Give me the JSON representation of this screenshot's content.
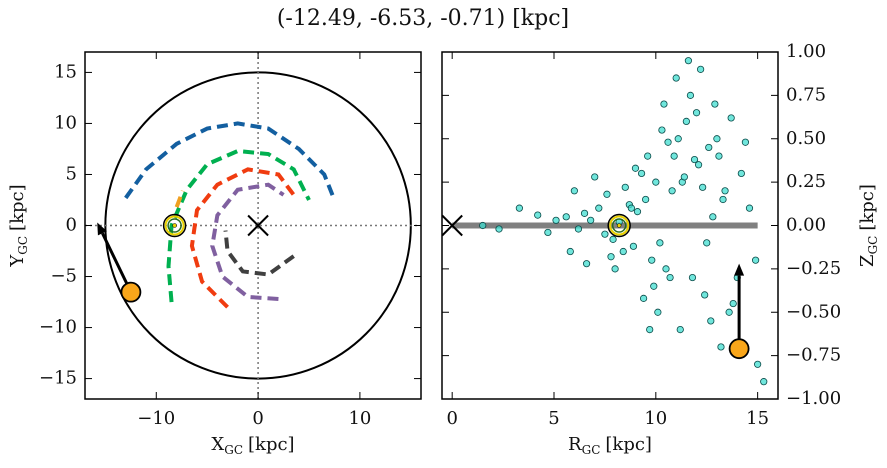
{
  "title": "(-12.49, -6.53, -0.71) [kpc]",
  "chart_data": [
    {
      "type": "line",
      "xlabel": {
        "main": "X",
        "sub": "GC",
        "unit": "[kpc]"
      },
      "ylabel": {
        "main": "Y",
        "sub": "GC",
        "unit": "[kpc]"
      },
      "xlim": [
        -17,
        16
      ],
      "ylim": [
        -17,
        17
      ],
      "xticks": [
        {
          "value": -10,
          "label": "−10"
        },
        0,
        10
      ],
      "yticks": [
        {
          "value": -15,
          "label": "−15"
        },
        {
          "value": -10,
          "label": "−10"
        },
        {
          "value": -5,
          "label": "−5"
        },
        0,
        5,
        10,
        15
      ],
      "radius": 15,
      "series": [
        {
          "color": "#135fa0",
          "x": [
            -13,
            -11,
            -8,
            -5,
            -2,
            1,
            4,
            6.5,
            7.5
          ],
          "y": [
            2.7,
            5.5,
            8,
            9.5,
            10,
            9.5,
            7.5,
            5,
            2.5
          ]
        },
        {
          "color": "#00b050",
          "x": [
            -8.5,
            -8.8,
            -8.5,
            -7,
            -5,
            -2,
            1,
            3.5,
            5
          ],
          "y": [
            -7.5,
            -4,
            0,
            3.5,
            6,
            7.3,
            7,
            5.5,
            2.5
          ]
        },
        {
          "color": "#f03c10",
          "x": [
            -3,
            -5.5,
            -6.5,
            -6,
            -4,
            -1,
            2,
            3.5
          ],
          "y": [
            -8,
            -5.5,
            -2,
            1.5,
            4,
            5.5,
            5,
            3
          ]
        },
        {
          "color": "#8060a0",
          "x": [
            2,
            -1,
            -3.5,
            -4.5,
            -4,
            -2,
            1,
            2.5
          ],
          "y": [
            -7.2,
            -7,
            -5,
            -2,
            1,
            3.5,
            4,
            3
          ]
        },
        {
          "color": "#404040",
          "x": [
            3.5,
            1,
            -1.5,
            -3,
            -3.2
          ],
          "y": [
            -3,
            -4.8,
            -4.5,
            -2.5,
            -0.5
          ]
        },
        {
          "color": "#f0a020",
          "x": [
            -8,
            -7.4
          ],
          "y": [
            1.8,
            3.4
          ]
        }
      ],
      "center": {
        "x": 0,
        "y": 0
      },
      "sun": {
        "x": -8.2,
        "y": 0
      },
      "star": {
        "x": -12.49,
        "y": -6.53,
        "color": "#f9a61a"
      },
      "arrow": {
        "x": [
          -12.49,
          -15.8
        ],
        "y": [
          -6.53,
          0.3
        ]
      }
    },
    {
      "type": "scatter",
      "xlabel": {
        "main": "R",
        "sub": "GC",
        "unit": "[kpc]"
      },
      "ylabel": {
        "main": "Z",
        "sub": "GC",
        "unit": "[kpc]"
      },
      "xlim": [
        -0.5,
        16
      ],
      "ylim": [
        -1,
        1
      ],
      "xticks": [
        0,
        5,
        10,
        15
      ],
      "yticks": [
        {
          "value": -1,
          "label": "−1.00"
        },
        {
          "value": -0.75,
          "label": "−0.75"
        },
        {
          "value": -0.5,
          "label": "−0.50"
        },
        {
          "value": -0.25,
          "label": "−0.25"
        },
        {
          "value": 0,
          "label": "0.00"
        },
        {
          "value": 0.25,
          "label": "0.25"
        },
        {
          "value": 0.5,
          "label": "0.50"
        },
        {
          "value": 0.75,
          "label": "0.75"
        },
        {
          "value": 1,
          "label": "1.00"
        }
      ],
      "color": "#40ddd0",
      "x": [
        8.2,
        7.5,
        9.1,
        6.8,
        10.2,
        8.7,
        7.9,
        9.5,
        6.2,
        10.8,
        8.4,
        7.2,
        9.8,
        5.6,
        11.3,
        8.9,
        7.6,
        10.5,
        6.5,
        9.3,
        12.1,
        11.8,
        12.6,
        13.0,
        10.9,
        12.4,
        11.5,
        13.4,
        9.9,
        12.9,
        13.6,
        14.2,
        11.0,
        10.3,
        12.2,
        13.8,
        9.6,
        11.7,
        14.6,
        8.0,
        5.1,
        4.7,
        4.2,
        3.3,
        2.3,
        1.5,
        5.8,
        6.0,
        7.0,
        6.6,
        10.1,
        12.0,
        11.2,
        13.3,
        10.6,
        9.4,
        11.9,
        12.7,
        10.0,
        14.0,
        15.0,
        15.3,
        14.9,
        13.1,
        11.4,
        12.3,
        10.7,
        9.0,
        8.5,
        7.8,
        11.6,
        12.8,
        13.7,
        10.4,
        9.7,
        12.5,
        11.1,
        13.2,
        14.4,
        8.8
      ],
      "y": [
        0.02,
        -0.05,
        0.08,
        0.03,
        -0.1,
        0.12,
        -0.08,
        0.15,
        -0.02,
        0.2,
        -0.15,
        0.1,
        -0.2,
        0.05,
        0.25,
        -0.12,
        0.18,
        -0.25,
        0.07,
        0.3,
        0.35,
        -0.3,
        0.45,
        0.5,
        0.4,
        -0.4,
        0.6,
        0.2,
        -0.35,
        0.7,
        -0.5,
        0.3,
        0.85,
        0.55,
        0.9,
        -0.45,
        0.4,
        0.75,
        0.1,
        -0.25,
        0.03,
        -0.04,
        0.06,
        0.1,
        -0.02,
        0.0,
        -0.15,
        0.2,
        0.28,
        -0.22,
        -0.5,
        0.65,
        -0.6,
        0.15,
        0.48,
        -0.42,
        0.38,
        -0.55,
        0.25,
        -0.3,
        -0.8,
        -0.9,
        -0.2,
        0.4,
        0.28,
        0.22,
        -0.3,
        0.33,
        0.22,
        -0.18,
        0.95,
        0.05,
        0.62,
        0.7,
        -0.6,
        -0.1,
        0.5,
        -0.7,
        0.48,
        0.1
      ],
      "disk": {
        "x": [
          0,
          15
        ],
        "y": [
          0,
          0
        ]
      },
      "center": {
        "x": 0,
        "y": 0
      },
      "sun": {
        "x": 8.2,
        "y": 0
      },
      "star": {
        "x": 14.09,
        "y": -0.71,
        "color": "#f9a61a"
      },
      "arrow": {
        "x": [
          14.09,
          14.09
        ],
        "y": [
          -0.71,
          -0.22
        ]
      }
    }
  ]
}
